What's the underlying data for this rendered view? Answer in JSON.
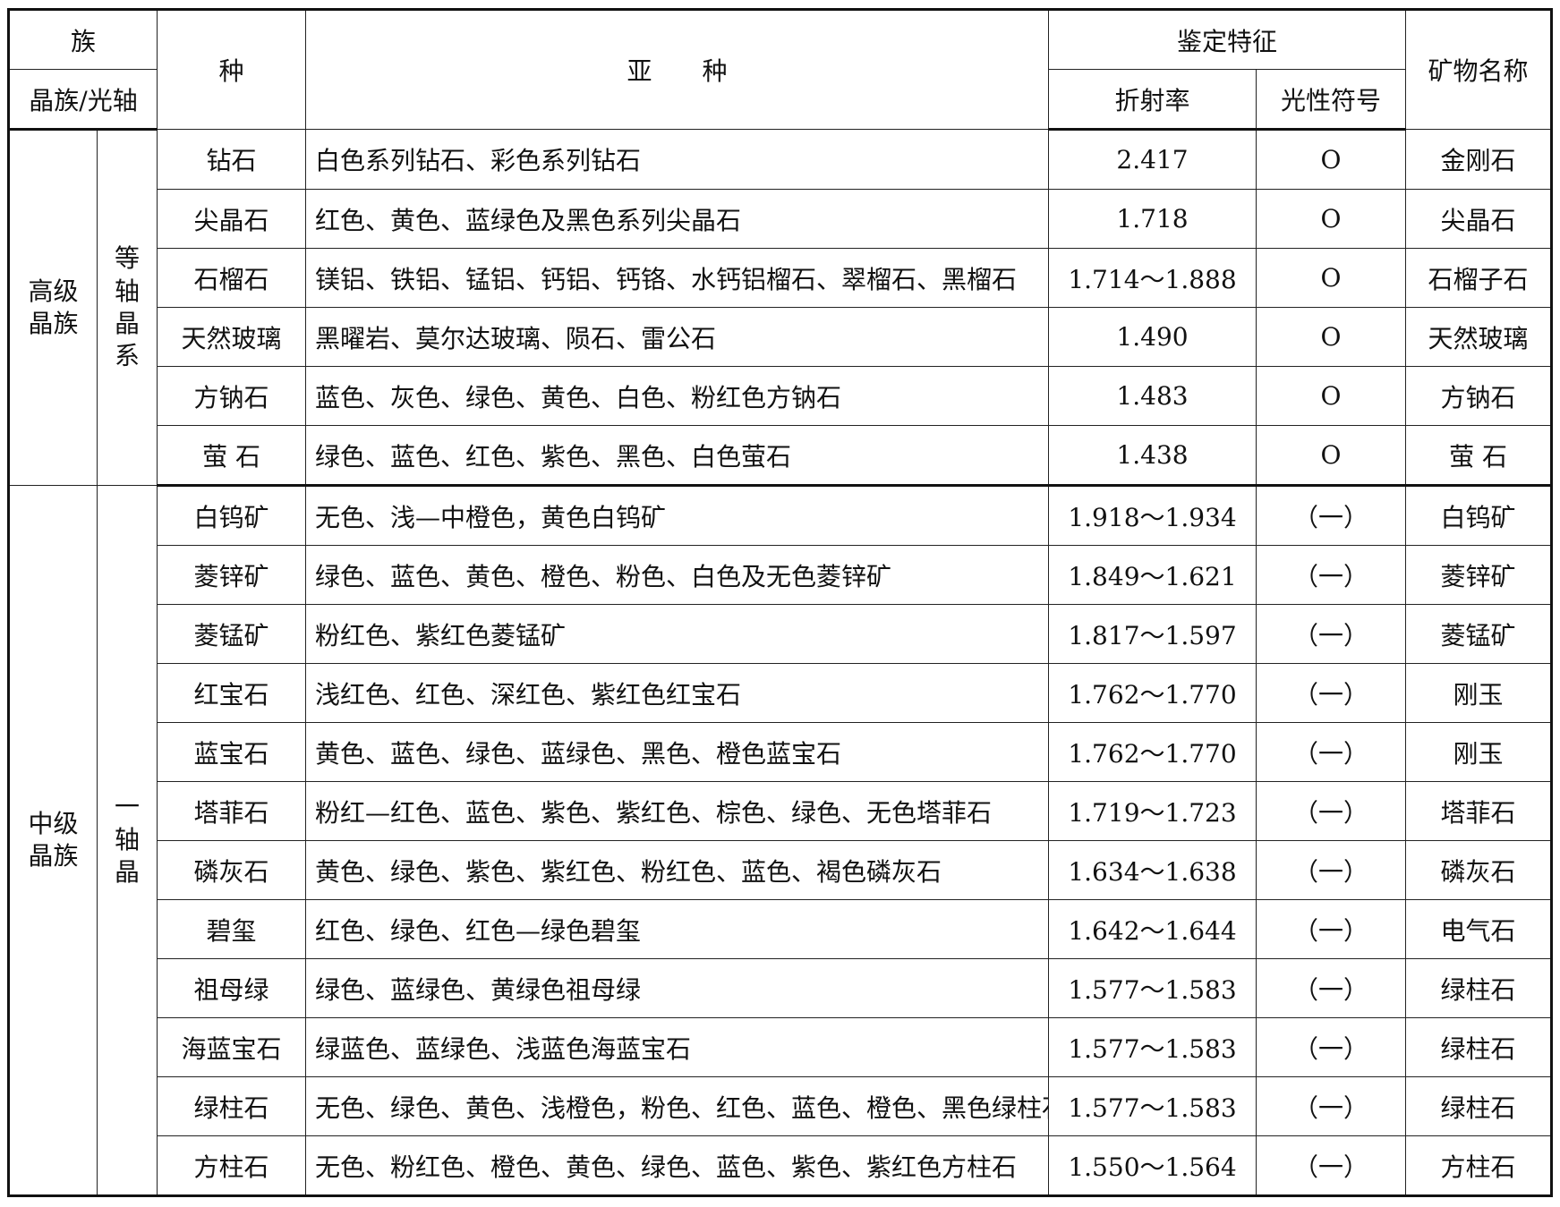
{
  "header": {
    "family": "族",
    "crystal_family_axis": "晶族/光轴",
    "species": "种",
    "subspecies": "亚　　种",
    "identification": "鉴定特征",
    "refractive_index": "折射率",
    "optic_sign": "光性符号",
    "mineral_name": "矿物名称"
  },
  "groups": [
    {
      "family": "高级晶族",
      "system": "等轴晶系",
      "rows": [
        {
          "species": "钻石",
          "subspecies": "白色系列钻石、彩色系列钻石",
          "ri": "2.417",
          "sign": "O",
          "mineral": "金刚石"
        },
        {
          "species": "尖晶石",
          "subspecies": "红色、黄色、蓝绿色及黑色系列尖晶石",
          "ri": "1.718",
          "sign": "O",
          "mineral": "尖晶石"
        },
        {
          "species": "石榴石",
          "subspecies": "镁铝、铁铝、锰铝、钙铝、钙铬、水钙铝榴石、翠榴石、黑榴石",
          "ri": "1.714～1.888",
          "sign": "O",
          "mineral": "石榴子石"
        },
        {
          "species": "天然玻璃",
          "subspecies": "黑曜岩、莫尔达玻璃、陨石、雷公石",
          "ri": "1.490",
          "sign": "O",
          "mineral": "天然玻璃"
        },
        {
          "species": "方钠石",
          "subspecies": "蓝色、灰色、绿色、黄色、白色、粉红色方钠石",
          "ri": "1.483",
          "sign": "O",
          "mineral": "方钠石"
        },
        {
          "species": "萤 石",
          "subspecies": "绿色、蓝色、红色、紫色、黑色、白色萤石",
          "ri": "1.438",
          "sign": "O",
          "mineral": "萤 石"
        }
      ]
    },
    {
      "family": "中级晶族",
      "system": "一轴晶",
      "rows": [
        {
          "species": "白钨矿",
          "subspecies": "无色、浅—中橙色，黄色白钨矿",
          "ri": "1.918～1.934",
          "sign": "（一）",
          "mineral": "白钨矿"
        },
        {
          "species": "菱锌矿",
          "subspecies": "绿色、蓝色、黄色、橙色、粉色、白色及无色菱锌矿",
          "ri": "1.849～1.621",
          "sign": "（一）",
          "mineral": "菱锌矿"
        },
        {
          "species": "菱锰矿",
          "subspecies": "粉红色、紫红色菱锰矿",
          "ri": "1.817～1.597",
          "sign": "（一）",
          "mineral": "菱锰矿"
        },
        {
          "species": "红宝石",
          "subspecies": "浅红色、红色、深红色、紫红色红宝石",
          "ri": "1.762～1.770",
          "sign": "（一）",
          "mineral": "刚玉"
        },
        {
          "species": "蓝宝石",
          "subspecies": "黄色、蓝色、绿色、蓝绿色、黑色、橙色蓝宝石",
          "ri": "1.762～1.770",
          "sign": "（一）",
          "mineral": "刚玉"
        },
        {
          "species": "塔菲石",
          "subspecies": "粉红—红色、蓝色、紫色、紫红色、棕色、绿色、无色塔菲石",
          "ri": "1.719～1.723",
          "sign": "（一）",
          "mineral": "塔菲石"
        },
        {
          "species": "磷灰石",
          "subspecies": "黄色、绿色、紫色、紫红色、粉红色、蓝色、褐色磷灰石",
          "ri": "1.634～1.638",
          "sign": "（一）",
          "mineral": "磷灰石"
        },
        {
          "species": "碧玺",
          "subspecies": "红色、绿色、红色—绿色碧玺",
          "ri": "1.642～1.644",
          "sign": "（一）",
          "mineral": "电气石"
        },
        {
          "species": "祖母绿",
          "subspecies": "绿色、蓝绿色、黄绿色祖母绿",
          "ri": "1.577～1.583",
          "sign": "（一）",
          "mineral": "绿柱石"
        },
        {
          "species": "海蓝宝石",
          "subspecies": "绿蓝色、蓝绿色、浅蓝色海蓝宝石",
          "ri": "1.577～1.583",
          "sign": "（一）",
          "mineral": "绿柱石"
        },
        {
          "species": "绿柱石",
          "subspecies": "无色、绿色、黄色、浅橙色，粉色、红色、蓝色、橙色、黑色绿柱石",
          "ri": "1.577～1.583",
          "sign": "（一）",
          "mineral": "绿柱石"
        },
        {
          "species": "方柱石",
          "subspecies": "无色、粉红色、橙色、黄色、绿色、蓝色、紫色、紫红色方柱石",
          "ri": "1.550～1.564",
          "sign": "（一）",
          "mineral": "方柱石"
        }
      ]
    }
  ]
}
